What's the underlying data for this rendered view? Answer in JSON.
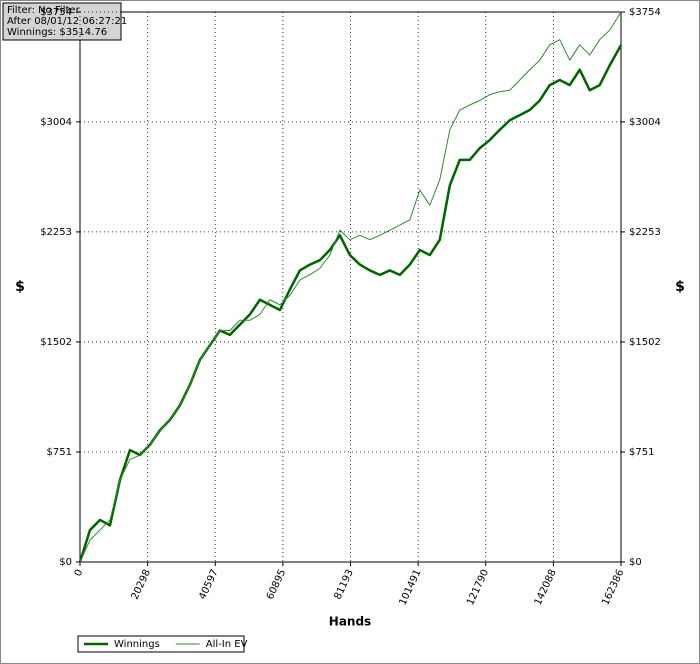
{
  "chart_data": {
    "type": "line",
    "annotations": [
      "Filter: No Filter",
      "After 08/01/12 06:27:21",
      "Winnings: $3514.76"
    ],
    "xlabel": "Hands",
    "ylabel": "$",
    "x": [
      0,
      3000,
      6000,
      9000,
      12000,
      15000,
      18000,
      21000,
      24000,
      27000,
      30000,
      33000,
      36000,
      39000,
      42000,
      45000,
      48000,
      51000,
      54000,
      57000,
      60000,
      63000,
      66000,
      69000,
      72000,
      75000,
      78000,
      81000,
      84000,
      87000,
      90000,
      93000,
      96000,
      99000,
      102000,
      105000,
      108000,
      111000,
      114000,
      117000,
      120000,
      123000,
      126000,
      129000,
      132000,
      135000,
      138000,
      141000,
      144000,
      147000,
      150000,
      153000,
      156000,
      159000,
      162386
    ],
    "series": [
      {
        "name": "Winnings",
        "color": "#006400",
        "width": 2.5,
        "values": [
          0,
          218,
          287,
          250,
          560,
          764,
          730,
          800,
          900,
          970,
          1070,
          1210,
          1380,
          1480,
          1580,
          1550,
          1620,
          1690,
          1790,
          1755,
          1720,
          1860,
          1990,
          2030,
          2060,
          2130,
          2230,
          2095,
          2030,
          1990,
          1960,
          1990,
          1960,
          2030,
          2130,
          2095,
          2200,
          2570,
          2745,
          2745,
          2825,
          2880,
          2950,
          3015,
          3050,
          3085,
          3150,
          3255,
          3290,
          3255,
          3360,
          3220,
          3255,
          3390,
          3528
        ]
      },
      {
        "name": "All-In EV",
        "color": "#2e8b2e",
        "width": 1,
        "values": [
          0,
          150,
          218,
          287,
          560,
          700,
          730,
          800,
          900,
          970,
          1070,
          1210,
          1380,
          1480,
          1580,
          1580,
          1650,
          1650,
          1690,
          1790,
          1755,
          1820,
          1925,
          1960,
          2005,
          2095,
          2265,
          2200,
          2230,
          2200,
          2230,
          2265,
          2300,
          2335,
          2540,
          2435,
          2610,
          2950,
          3085,
          3120,
          3150,
          3190,
          3210,
          3220,
          3290,
          3360,
          3425,
          3530,
          3565,
          3425,
          3530,
          3460,
          3565,
          3630,
          3754
        ]
      }
    ],
    "xlim": [
      0,
      162386
    ],
    "xticks": [
      0,
      20298,
      40597,
      60895,
      81193,
      101491,
      121790,
      142088,
      162386
    ],
    "ylim": [
      0,
      3754
    ],
    "yticks": [
      {
        "value": 0,
        "label": "$0"
      },
      {
        "value": 751,
        "label": "$751"
      },
      {
        "value": 1502,
        "label": "$1502"
      },
      {
        "value": 2253,
        "label": "$2253"
      },
      {
        "value": 3004,
        "label": "$3004"
      },
      {
        "value": 3754,
        "label": "$3754"
      }
    ],
    "grid": true
  }
}
